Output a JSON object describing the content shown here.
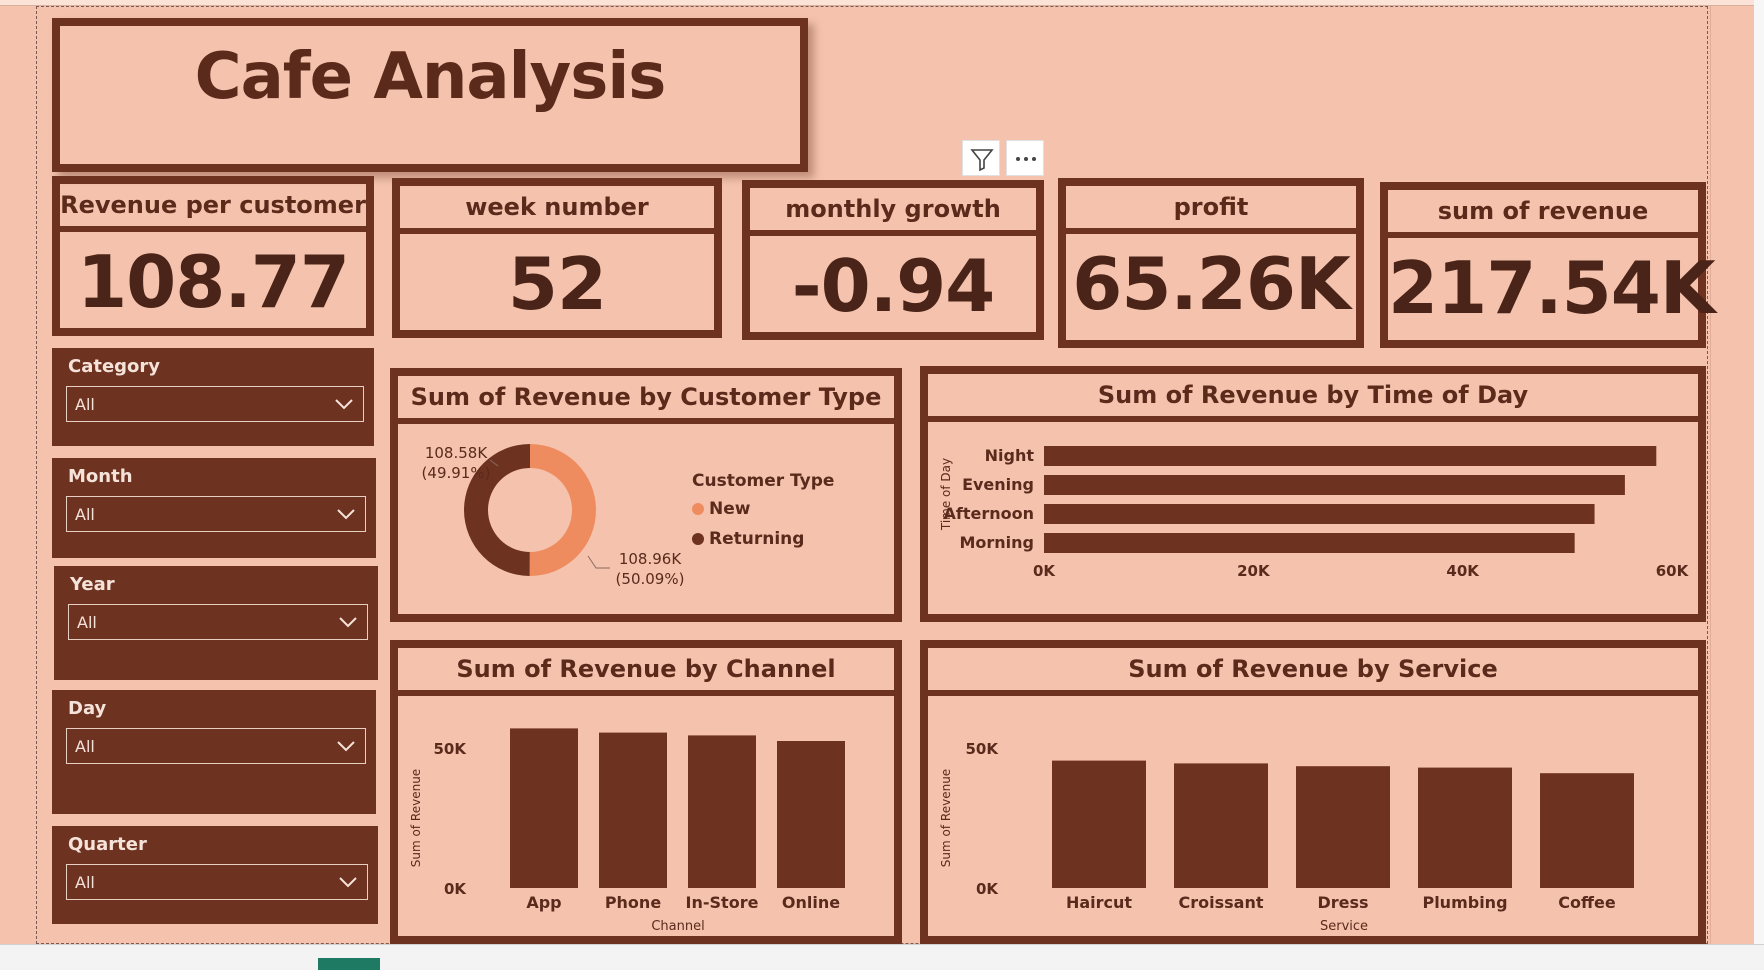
{
  "title": "Cafe Analysis",
  "kpis": [
    {
      "label": "Revenue per customer",
      "value": "108.77"
    },
    {
      "label": "week number",
      "value": "52"
    },
    {
      "label": "monthly growth",
      "value": "-0.94"
    },
    {
      "label": "profit",
      "value": "65.26K"
    },
    {
      "label": "sum of revenue",
      "value": "217.54K"
    }
  ],
  "slicers": [
    {
      "label": "Category",
      "value": "All"
    },
    {
      "label": "Month",
      "value": "All"
    },
    {
      "label": "Year",
      "value": "All"
    },
    {
      "label": "Day",
      "value": "All"
    },
    {
      "label": "Quarter",
      "value": "All"
    }
  ],
  "colors": {
    "dark": "#6e3221",
    "accent": "#ee8c60",
    "bg": "#f5c3ad"
  },
  "chart_data": [
    {
      "type": "pie",
      "title": "Sum of Revenue by Customer Type",
      "legend_title": "Customer Type",
      "legend_position": "right",
      "categories": [
        "New",
        "Returning"
      ],
      "values": [
        108960,
        108580
      ],
      "labels": [
        {
          "value": "108.96K",
          "pct": "(50.09%)"
        },
        {
          "value": "108.58K",
          "pct": "(49.91%)"
        }
      ]
    },
    {
      "type": "bar",
      "orientation": "horizontal",
      "title": "Sum of Revenue by Time of Day",
      "ylabel": "Time of Day",
      "categories": [
        "Night",
        "Evening",
        "Afternoon",
        "Morning"
      ],
      "values": [
        58500,
        55500,
        52600,
        50700
      ],
      "xlim": [
        0,
        60000
      ],
      "xticks": [
        "0K",
        "20K",
        "40K",
        "60K"
      ]
    },
    {
      "type": "bar",
      "title": "Sum of Revenue by Channel",
      "xlabel": "Channel",
      "ylabel": "Sum of Revenue",
      "categories": [
        "App",
        "Phone",
        "In-Store",
        "Online"
      ],
      "values": [
        57000,
        55500,
        54500,
        52500
      ],
      "ylim": [
        0,
        50000
      ],
      "yticks": [
        "0K",
        "50K"
      ]
    },
    {
      "type": "bar",
      "title": "Sum of Revenue by Service",
      "xlabel": "Service",
      "ylabel": "Sum of Revenue",
      "categories": [
        "Haircut",
        "Croissant",
        "Dress",
        "Plumbing",
        "Coffee"
      ],
      "values": [
        45500,
        44500,
        43500,
        43000,
        41000
      ],
      "ylim": [
        0,
        50000
      ],
      "yticks": [
        "0K",
        "50K"
      ]
    }
  ]
}
